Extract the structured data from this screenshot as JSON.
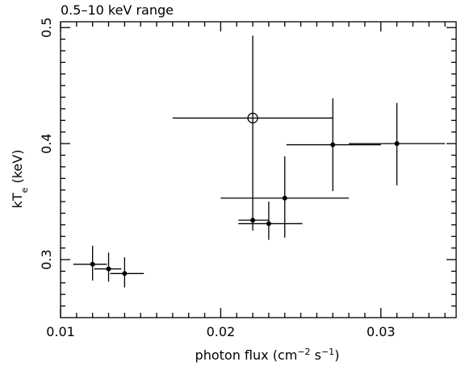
{
  "chart_data": {
    "type": "scatter",
    "title": "0.5–10 keV range",
    "xlabel": {
      "base": "photon flux (cm",
      "exp1": "−2",
      "mid": " s",
      "exp2": "−1",
      "end": ")"
    },
    "ylabel": {
      "base": "kT",
      "sub": "e",
      "rest": " (keV)"
    },
    "xlim": [
      0.01,
      0.0347
    ],
    "ylim": [
      0.25,
      0.505
    ],
    "grid": false,
    "x_ticks": {
      "major": [
        0.01,
        0.02,
        0.03
      ],
      "minor": [
        0.011,
        0.012,
        0.013,
        0.014,
        0.015,
        0.016,
        0.017,
        0.018,
        0.019,
        0.021,
        0.022,
        0.023,
        0.024,
        0.025,
        0.026,
        0.027,
        0.028,
        0.029,
        0.031,
        0.032,
        0.033,
        0.034
      ],
      "labels": [
        "0.01",
        "0.02",
        "0.03"
      ]
    },
    "y_ticks": {
      "major": [
        0.3,
        0.4,
        0.5
      ],
      "minor": [
        0.26,
        0.27,
        0.28,
        0.29,
        0.31,
        0.32,
        0.33,
        0.34,
        0.35,
        0.36,
        0.37,
        0.38,
        0.39,
        0.41,
        0.42,
        0.43,
        0.44,
        0.45,
        0.46,
        0.47,
        0.48,
        0.49
      ],
      "labels": [
        "0.3",
        "0.4",
        "0.5"
      ]
    },
    "points": [
      {
        "x": 0.012,
        "y": 0.296,
        "xerr": [
          0.0108,
          0.0129
        ],
        "yerr": [
          0.282,
          0.312
        ],
        "marker": "filled"
      },
      {
        "x": 0.013,
        "y": 0.292,
        "xerr": [
          0.0121,
          0.0138
        ],
        "yerr": [
          0.281,
          0.306
        ],
        "marker": "filled"
      },
      {
        "x": 0.014,
        "y": 0.288,
        "xerr": [
          0.0131,
          0.0152
        ],
        "yerr": [
          0.276,
          0.302
        ],
        "marker": "filled"
      },
      {
        "x": 0.022,
        "y": 0.334,
        "xerr": [
          0.0211,
          0.023
        ],
        "yerr": [
          0.325,
          0.344
        ],
        "marker": "filled"
      },
      {
        "x": 0.023,
        "y": 0.331,
        "xerr": [
          0.0211,
          0.0251
        ],
        "yerr": [
          0.317,
          0.35
        ],
        "marker": "filled"
      },
      {
        "x": 0.024,
        "y": 0.353,
        "xerr": [
          0.02,
          0.028
        ],
        "yerr": [
          0.319,
          0.389
        ],
        "marker": "filled"
      },
      {
        "x": 0.022,
        "y": 0.422,
        "xerr": [
          0.017,
          0.027
        ],
        "yerr": [
          0.344,
          0.493
        ],
        "marker": "open"
      },
      {
        "x": 0.027,
        "y": 0.399,
        "xerr": [
          0.0241,
          0.03
        ],
        "yerr": [
          0.359,
          0.439
        ],
        "marker": "filled"
      },
      {
        "x": 0.031,
        "y": 0.4,
        "xerr": [
          0.028,
          0.034
        ],
        "yerr": [
          0.364,
          0.435
        ],
        "marker": "filled"
      }
    ]
  }
}
